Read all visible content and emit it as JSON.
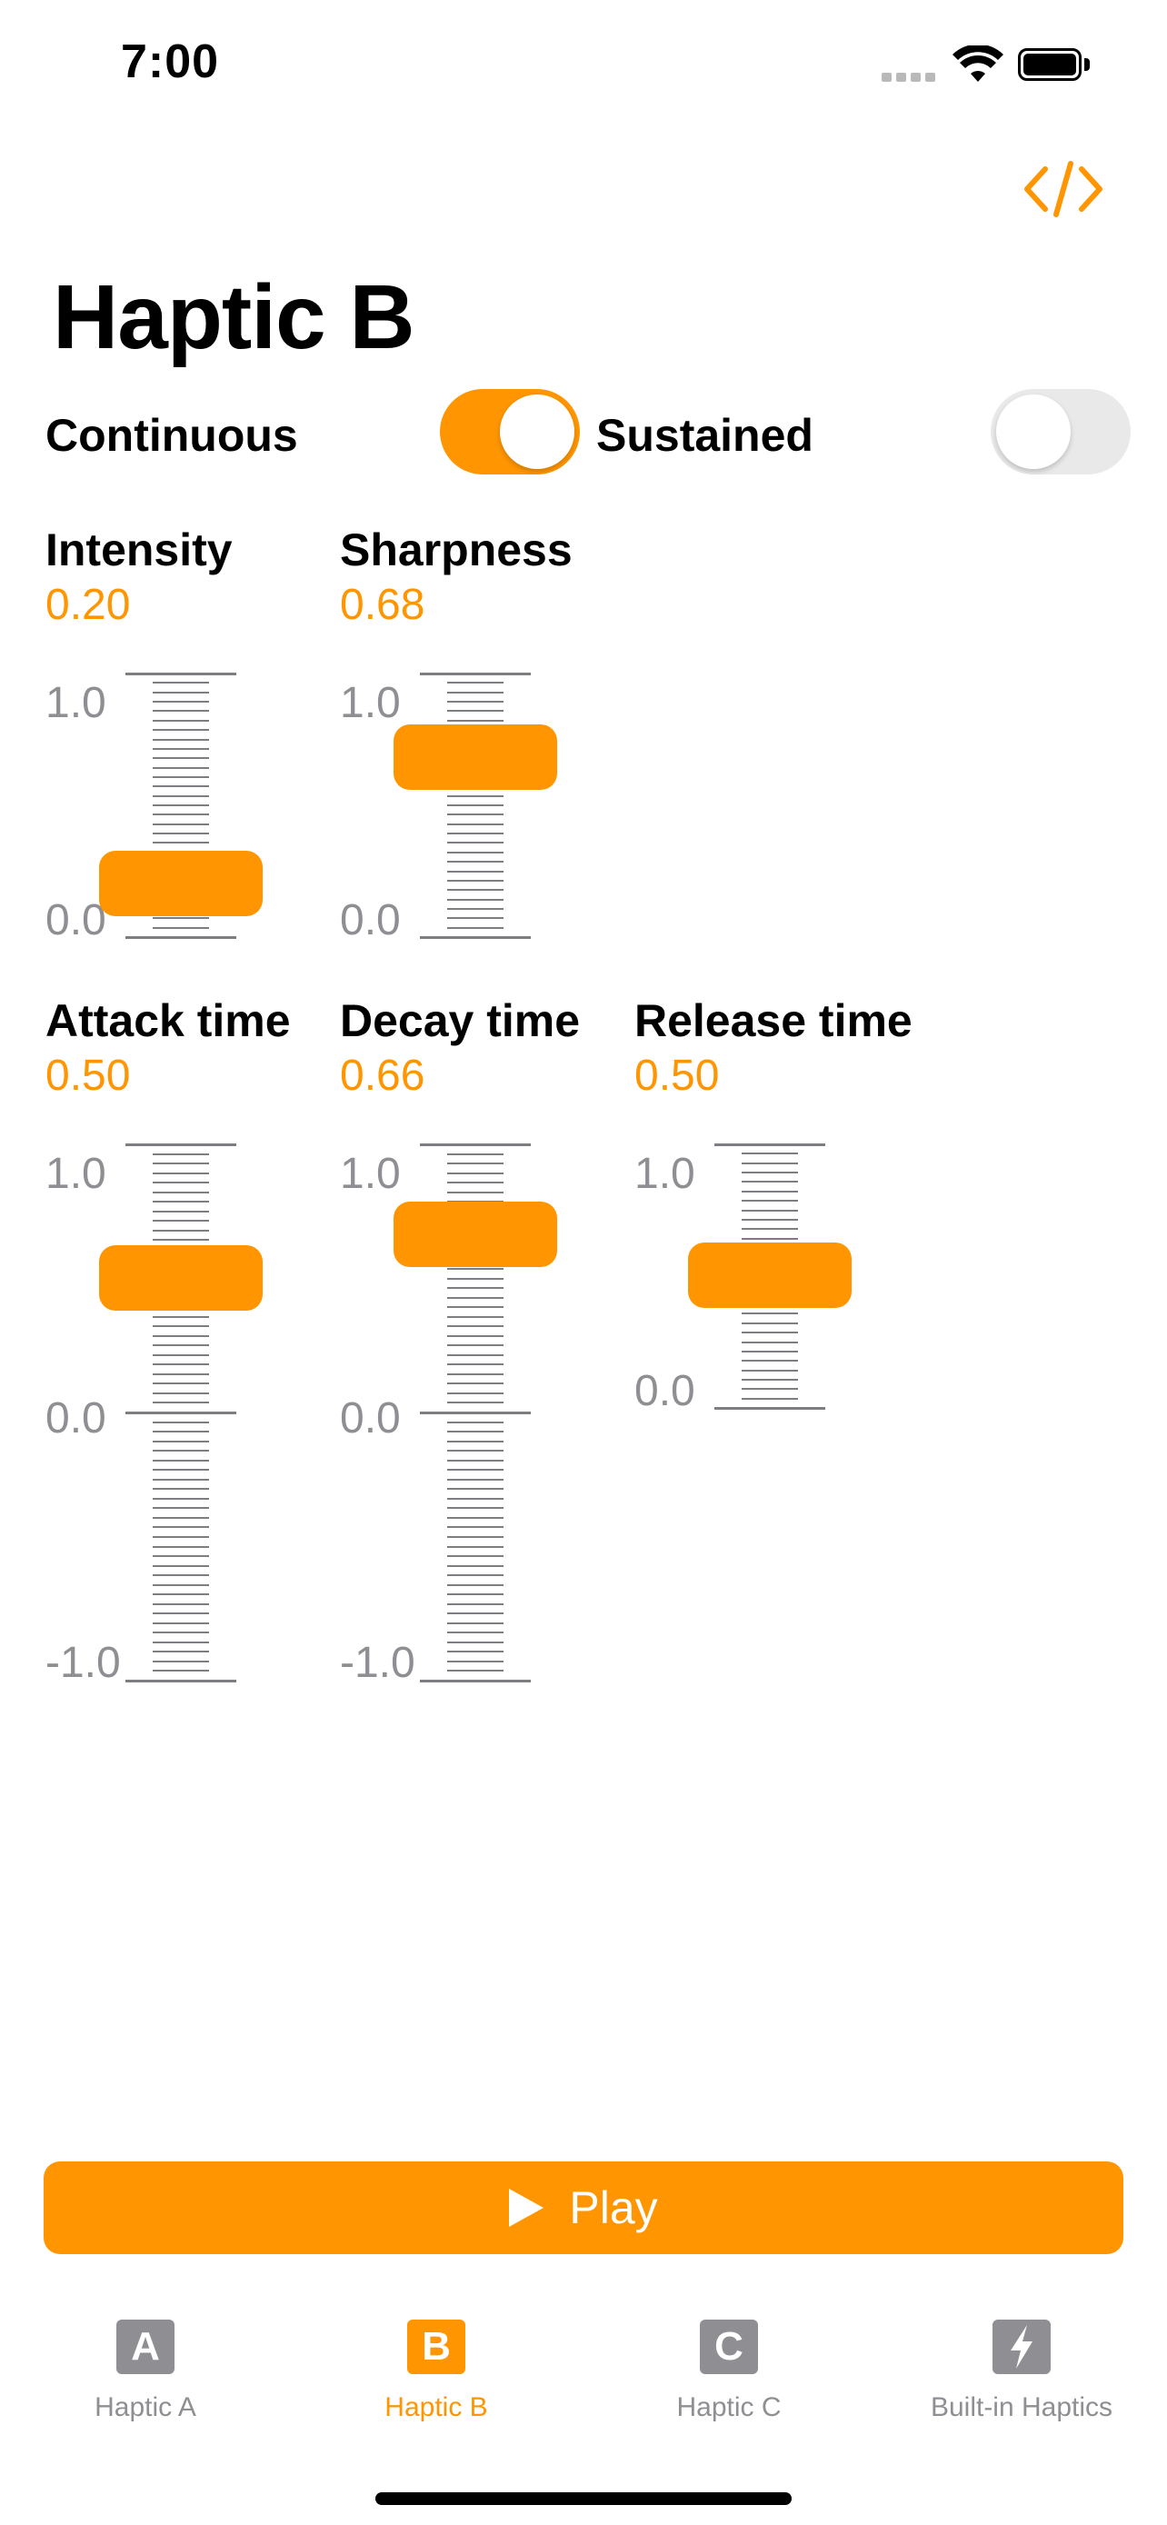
{
  "status_bar": {
    "time": "7:00"
  },
  "header": {
    "title": "Haptic B"
  },
  "toggles": [
    {
      "label": "Continuous",
      "on": true
    },
    {
      "label": "Sustained",
      "on": false
    }
  ],
  "params": [
    {
      "label": "Intensity",
      "value": "0.20",
      "max_label": "1.0",
      "min_label": "0.0",
      "level": 0.2
    },
    {
      "label": "Sharpness",
      "value": "0.68",
      "max_label": "1.0",
      "min_label": "0.0",
      "level": 0.68
    },
    {
      "label": "Attack time",
      "value": "0.50",
      "max_label": "1.0",
      "mid_label": "0.0",
      "min_label": "-1.0",
      "level": 0.5
    },
    {
      "label": "Decay time",
      "value": "0.66",
      "max_label": "1.0",
      "mid_label": "0.0",
      "min_label": "-1.0",
      "level": 0.66
    },
    {
      "label": "Release time",
      "value": "0.50",
      "max_label": "1.0",
      "min_label": "0.0",
      "level": 0.5
    }
  ],
  "play_button": {
    "label": "Play"
  },
  "tabs": [
    {
      "icon_letter": "A",
      "label": "Haptic A",
      "active": false
    },
    {
      "icon_letter": "B",
      "label": "Haptic B",
      "active": true
    },
    {
      "icon_letter": "C",
      "label": "Haptic C",
      "active": false
    },
    {
      "icon_letter": "",
      "label": "Built-in Haptics",
      "active": false
    }
  ],
  "colors": {
    "accent": "#ff9500",
    "tick": "#7d7d82",
    "secondary": "#8e8e93"
  }
}
